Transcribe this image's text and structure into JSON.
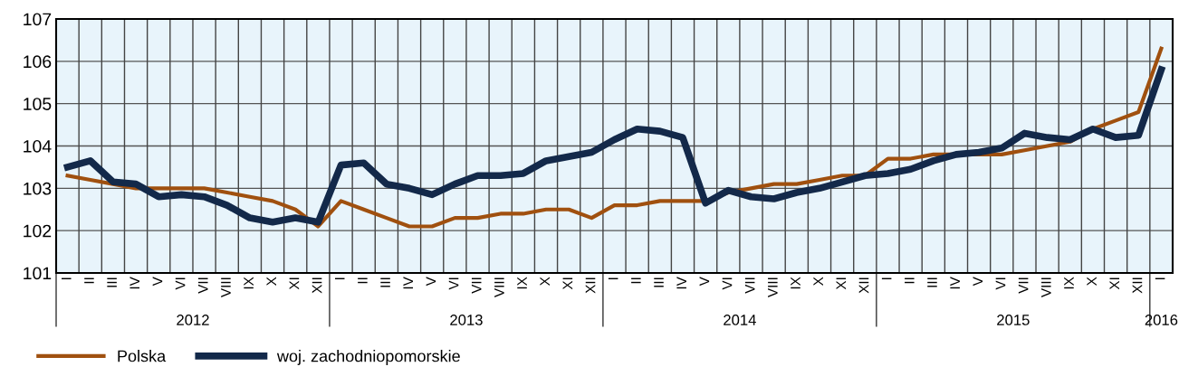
{
  "chart_data": {
    "type": "line",
    "categories": [
      "I",
      "II",
      "III",
      "IV",
      "V",
      "VI",
      "VII",
      "VIII",
      "IX",
      "X",
      "XI",
      "XII",
      "I",
      "II",
      "III",
      "IV",
      "V",
      "VI",
      "VII",
      "VIII",
      "IX",
      "X",
      "XI",
      "XII",
      "I",
      "II",
      "III",
      "IV",
      "V",
      "VI",
      "VII",
      "VIII",
      "IX",
      "X",
      "XI",
      "XII",
      "I",
      "II",
      "III",
      "IV",
      "V",
      "VI",
      "VII",
      "VIII",
      "IX",
      "X",
      "XI",
      "XII",
      "I"
    ],
    "series": [
      {
        "name": "Polska",
        "color": "#a0500f",
        "values": [
          103.3,
          103.2,
          103.1,
          103.0,
          103.0,
          103.0,
          103.0,
          102.9,
          102.8,
          102.7,
          102.5,
          102.1,
          102.7,
          102.5,
          102.3,
          102.1,
          102.1,
          102.3,
          102.3,
          102.4,
          102.4,
          102.5,
          102.5,
          102.3,
          102.6,
          102.6,
          102.7,
          102.7,
          102.7,
          102.9,
          103.0,
          103.1,
          103.1,
          103.2,
          103.3,
          103.3,
          103.7,
          103.7,
          103.8,
          103.8,
          103.8,
          103.8,
          103.9,
          104.0,
          104.1,
          104.4,
          104.6,
          104.8,
          106.3
        ]
      },
      {
        "name": "woj. zachodniopomorskie",
        "color": "#13294a",
        "values": [
          103.5,
          103.65,
          103.15,
          103.1,
          102.8,
          102.85,
          102.8,
          102.6,
          102.3,
          102.2,
          102.3,
          102.2,
          103.55,
          103.6,
          103.1,
          103.0,
          102.85,
          103.1,
          103.3,
          103.3,
          103.35,
          103.65,
          103.75,
          103.85,
          104.15,
          104.4,
          104.35,
          104.2,
          102.65,
          102.95,
          102.8,
          102.75,
          102.9,
          103.0,
          103.15,
          103.3,
          103.35,
          103.45,
          103.65,
          103.8,
          103.85,
          103.95,
          104.3,
          104.2,
          104.15,
          104.4,
          104.2,
          104.25,
          105.8
        ]
      }
    ],
    "annotations": [
      "2012",
      "2013",
      "2014",
      "2015",
      "2016"
    ],
    "ylim": [
      101,
      107
    ],
    "yticks": [
      101,
      102,
      103,
      104,
      105,
      106,
      107
    ],
    "grid": true,
    "legend": "bottom left"
  }
}
